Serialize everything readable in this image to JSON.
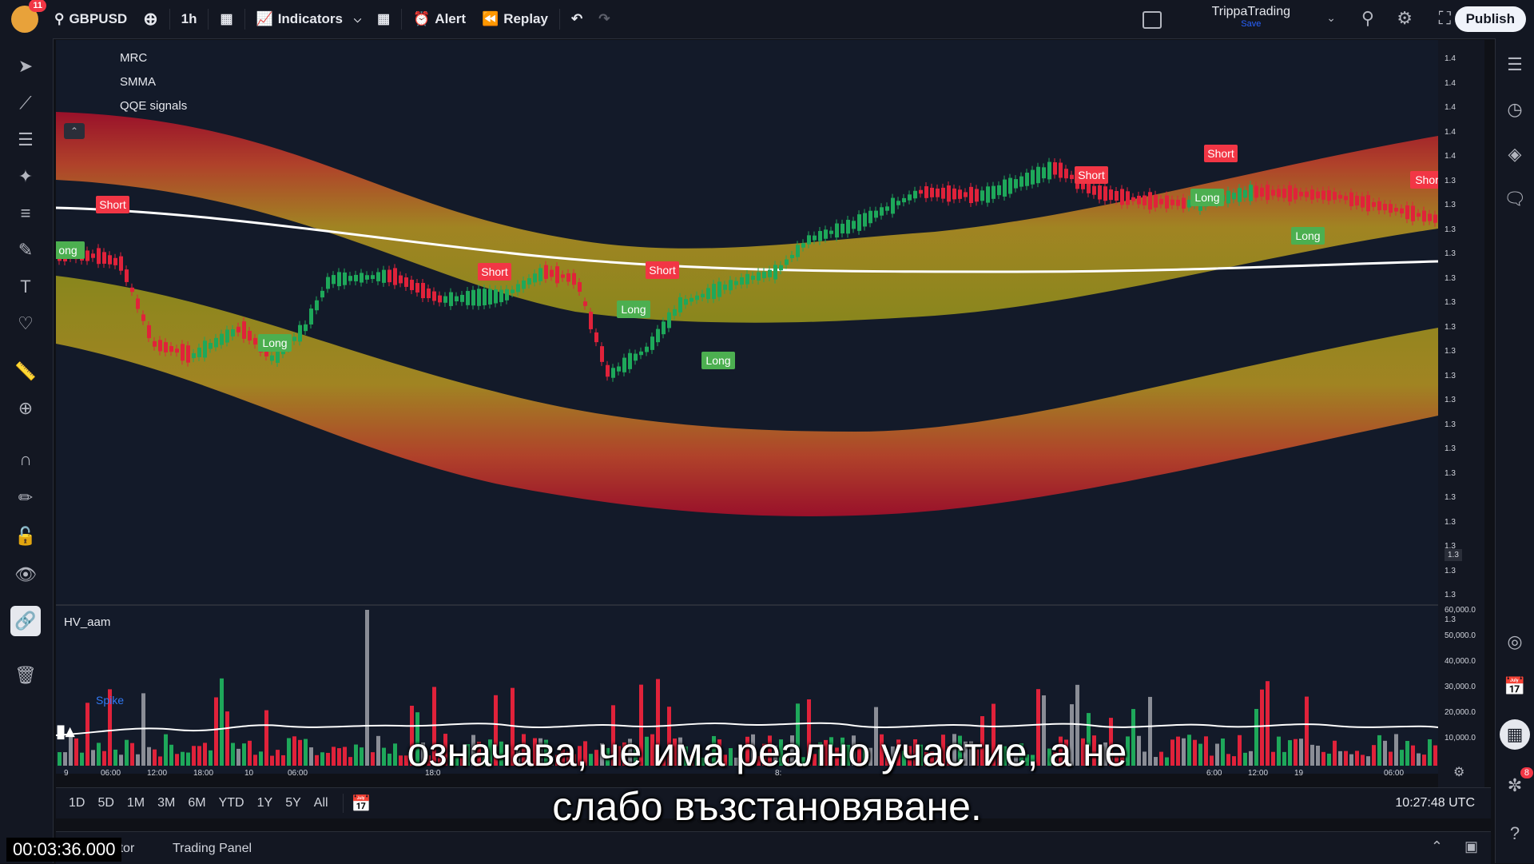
{
  "topbar": {
    "notifications": "11",
    "symbol": "GBPUSD",
    "interval": "1h",
    "indicators_label": "Indicators",
    "alert_label": "Alert",
    "replay_label": "Replay",
    "profile_name": "TrippaTrading",
    "profile_save": "Save",
    "publish_label": "Publish"
  },
  "legend": {
    "line1": "MRC",
    "line2": "SMMA",
    "line3": "QQE signals",
    "volume_title": "HV_aam",
    "spike_label": "Spike"
  },
  "price_axis": {
    "ticks": [
      "1.4",
      "1.4",
      "1.4",
      "1.4",
      "1.4",
      "1.3",
      "1.3",
      "1.3",
      "1.3",
      "1.3",
      "1.3",
      "1.3",
      "1.3",
      "1.3",
      "1.3",
      "1.3",
      "1.3",
      "1.3",
      "1.3",
      "1.3",
      "1.3",
      "1.3",
      "1.3",
      "1.3"
    ],
    "current": "1.3"
  },
  "volume_axis": {
    "ticks": [
      "60,000.0",
      "50,000.0",
      "40,000.0",
      "30,000.0",
      "20,000.0",
      "10,000.0"
    ]
  },
  "time_axis": {
    "labels": [
      "9",
      "06:00",
      "12:00",
      "18:00",
      "10",
      "06:00",
      "18:0",
      "8:",
      "6:00",
      "12:00",
      "19",
      "06:00"
    ]
  },
  "signals": {
    "short": "Short",
    "long": "Long",
    "short_cut": "Shor",
    "long_cut": "ong"
  },
  "bottombar": {
    "ranges": [
      "1D",
      "5D",
      "1M",
      "3M",
      "6M",
      "YTD",
      "1Y",
      "5Y",
      "All"
    ],
    "clock": "10:27:48 UTC"
  },
  "panelbar": {
    "tab1": "Pine Editor",
    "tab2": "Trading Panel"
  },
  "subtitle": {
    "line1": "означава, че има реално участие, а не",
    "line2": "слабо възстановяване."
  },
  "timecode": "00:03:36.000",
  "right_badge": "8"
}
